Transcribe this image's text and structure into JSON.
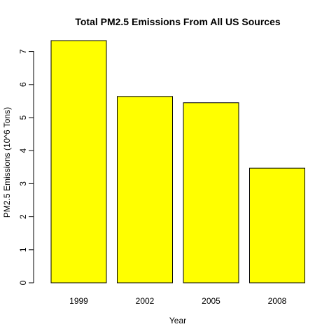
{
  "chart_data": {
    "type": "bar",
    "title": "Total PM2.5 Emissions From All US Sources",
    "xlabel": "Year",
    "ylabel": "PM2.5 Emissions (10^6 Tons)",
    "categories": [
      "1999",
      "2002",
      "2005",
      "2008"
    ],
    "values": [
      7.33,
      5.64,
      5.45,
      3.47
    ],
    "ylim": [
      0,
      7
    ],
    "yticks": [
      "0",
      "1",
      "2",
      "3",
      "4",
      "5",
      "6",
      "7"
    ],
    "bar_color": "#ffff00",
    "grid": false,
    "legend": "none"
  }
}
